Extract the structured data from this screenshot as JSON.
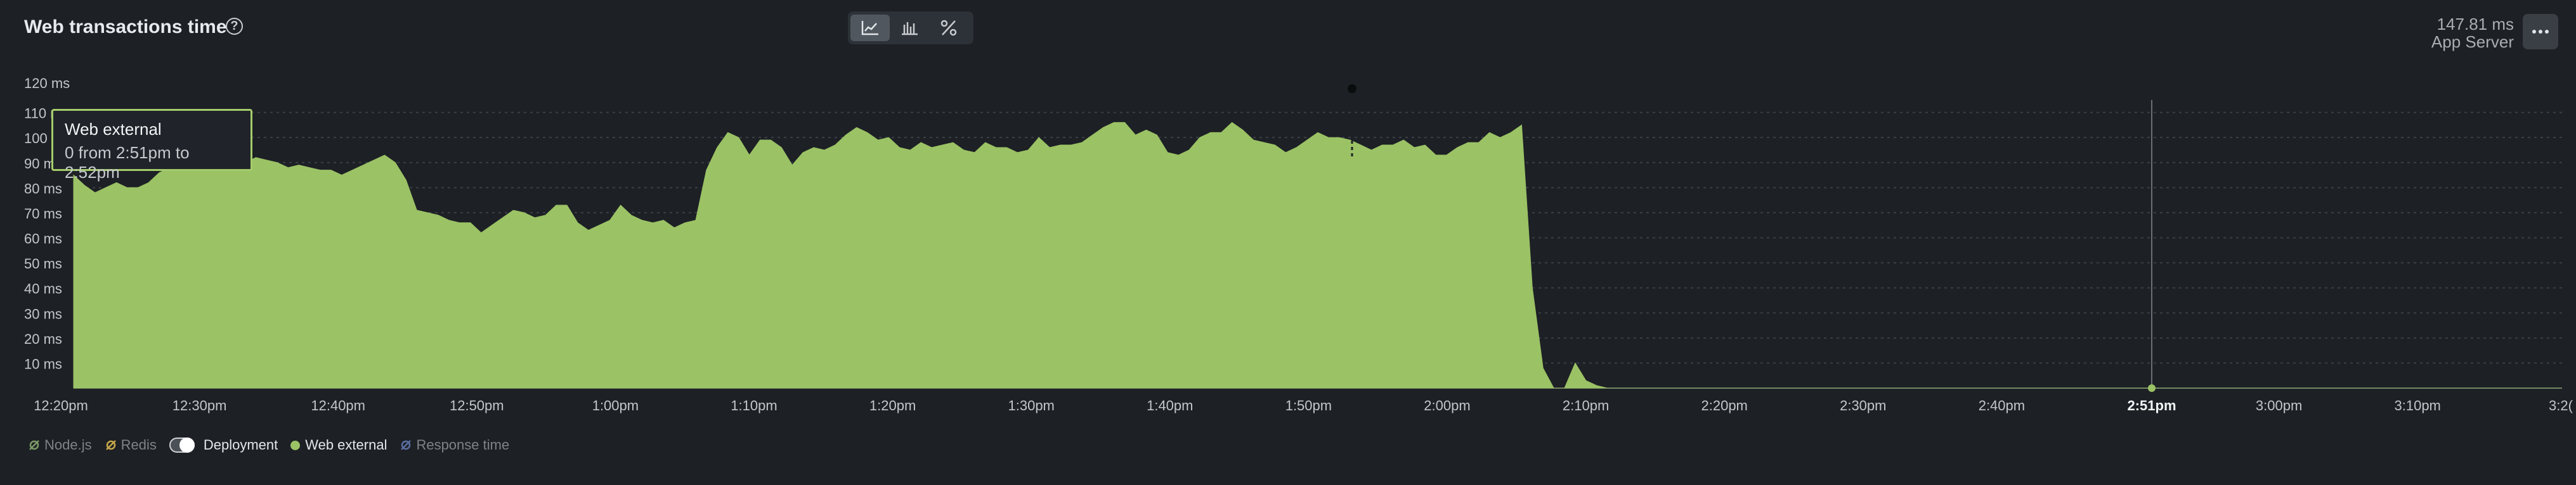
{
  "header": {
    "title": "Web transactions time",
    "help_glyph": "?",
    "view_buttons": [
      {
        "icon": "line-chart-icon",
        "active": true
      },
      {
        "icon": "bar-chart-icon",
        "active": false
      },
      {
        "icon": "percent-icon",
        "active": false
      }
    ],
    "stat_value": "147.81 ms",
    "stat_label": "App Server",
    "more_icon": "more-horizontal-icon"
  },
  "tooltip": {
    "title": "Web external",
    "detail": "0 from 2:51pm to 2:52pm"
  },
  "legend": {
    "items": [
      {
        "label": "Node.js",
        "color": "#7d9a67",
        "icon": "disabled-legend-icon",
        "active": false
      },
      {
        "label": "Redis",
        "color": "#c9a94a",
        "icon": "disabled-legend-icon",
        "active": false
      },
      {
        "label": "Deployment",
        "icon": "toggle-switch",
        "active": true
      },
      {
        "label": "Web external",
        "color": "#9bc265",
        "icon": "legend-dot",
        "active": true
      },
      {
        "label": "Response time",
        "color": "#5a6fa3",
        "icon": "disabled-legend-icon",
        "active": false
      }
    ]
  },
  "chart_data": {
    "type": "area",
    "series": [
      {
        "name": "Web external",
        "color": "#9bc265",
        "values": [
          85,
          81,
          78,
          80,
          82,
          80,
          80,
          82,
          86,
          88,
          90,
          92,
          92,
          91,
          90,
          92,
          90,
          92,
          91,
          90,
          88,
          89,
          88,
          87,
          87,
          85,
          87,
          89,
          91,
          93,
          90,
          83,
          71,
          70,
          69,
          67,
          66,
          66,
          62,
          65,
          68,
          71,
          70,
          68,
          69,
          73,
          73,
          66,
          63,
          65,
          67,
          73,
          69,
          67,
          66,
          67,
          64,
          66,
          67,
          87,
          96,
          102,
          100,
          93,
          99,
          99,
          96,
          89,
          94,
          96,
          95,
          97,
          101,
          104,
          102,
          99,
          100,
          96,
          95,
          98,
          96,
          97,
          98,
          95,
          94,
          98,
          96,
          96,
          94,
          95,
          100,
          96,
          97,
          97,
          98,
          101,
          104,
          106,
          106,
          101,
          103,
          101,
          94,
          93,
          95,
          100,
          102,
          102,
          106,
          103,
          99,
          98,
          97,
          94,
          96,
          99,
          102,
          100,
          100,
          99,
          97,
          95,
          97,
          97,
          99,
          96,
          97,
          93,
          93,
          96,
          98,
          98,
          102,
          100,
          102,
          105,
          40,
          8,
          0,
          0,
          10,
          3,
          1,
          0,
          0,
          0,
          0,
          0,
          0,
          0,
          0,
          0,
          0,
          0,
          0,
          0,
          0,
          0,
          0,
          0,
          0,
          0,
          0,
          0,
          0,
          0,
          0,
          0,
          0,
          0,
          0,
          0,
          0,
          0,
          0,
          0,
          0,
          0,
          0,
          0,
          0,
          0,
          0,
          0,
          0,
          0,
          0,
          0,
          0,
          0,
          0,
          0,
          0,
          0,
          0,
          0,
          0,
          0,
          0,
          0,
          0,
          0,
          0,
          0,
          0,
          0,
          0,
          0,
          0,
          0,
          0,
          0,
          0,
          0,
          0,
          0,
          0,
          0,
          0,
          0,
          0,
          0,
          0,
          0,
          0,
          0,
          0,
          0,
          0,
          0,
          0,
          0,
          0
        ]
      }
    ],
    "y_ticks": [
      "10 ms",
      "20 ms",
      "30 ms",
      "40 ms",
      "50 ms",
      "60 ms",
      "70 ms",
      "80 ms",
      "90 ms",
      "100 ms",
      "110 ms",
      "120 ms"
    ],
    "ylim": [
      0,
      120
    ],
    "x_ticks": [
      "12:20pm",
      "12:30pm",
      "12:40pm",
      "12:50pm",
      "1:00pm",
      "1:10pm",
      "1:20pm",
      "1:30pm",
      "1:40pm",
      "1:50pm",
      "2:00pm",
      "2:10pm",
      "2:20pm",
      "2:30pm",
      "2:40pm",
      "2:51pm",
      "3:00pm",
      "3:10pm",
      "3:2("
    ],
    "highlight_tick": "2:51pm",
    "deployment_marker": "1:53pm",
    "grid": "dashed horizontal",
    "legend_position": "bottom-left"
  }
}
